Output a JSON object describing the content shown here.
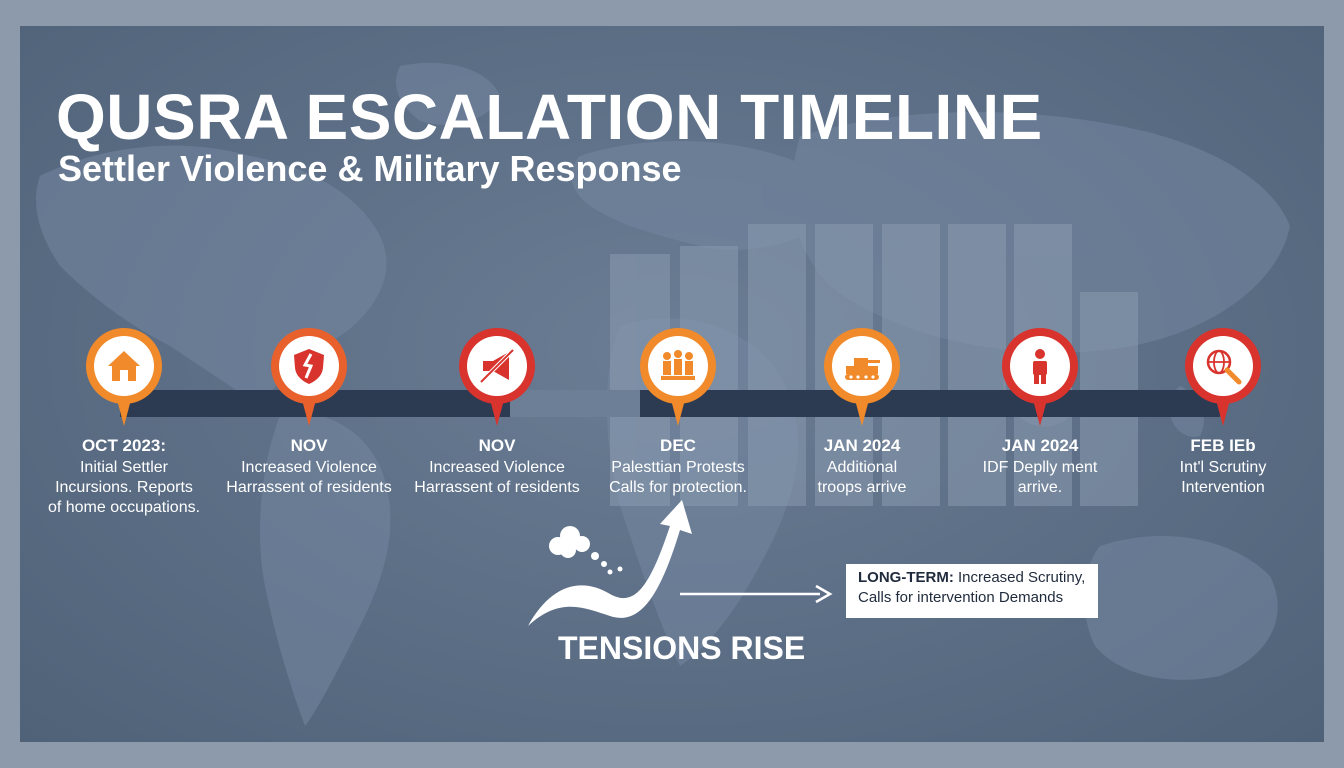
{
  "title": "QUSRA ESCALATION TIMELINE",
  "subtitle": "Settler Violence & Military Response",
  "colors": {
    "background": "#5c6e85",
    "timeline_bar": "#2c3a52",
    "marker_orange": "#f08a2a",
    "marker_red": "#d8332c",
    "text": "#ffffff"
  },
  "events": [
    {
      "date": "OCT 2023:",
      "line1": "Initial Settler",
      "line2": "Incursions. Reports",
      "line3": "of home occupations.",
      "icon": "house-icon",
      "color": "orange"
    },
    {
      "date": "NOV",
      "line1": "Increased Violence",
      "line2": "Harrassent of residents",
      "line3": "",
      "icon": "broken-shield-icon",
      "color": "orange-red"
    },
    {
      "date": "NOV",
      "line1": "Increased Violence",
      "line2": "Harrassent of residents",
      "line3": "",
      "icon": "banned-megaphone-icon",
      "color": "red"
    },
    {
      "date": "DEC",
      "line1": "Palesttian Protests",
      "line2": "Calls for protection.",
      "line3": "",
      "icon": "protesters-icon",
      "color": "orange"
    },
    {
      "date": "JAN 2024",
      "line1": "Additional",
      "line2": "troops arrive",
      "line3": "",
      "icon": "tank-icon",
      "color": "orange"
    },
    {
      "date": "JAN 2024",
      "line1": "IDF Deplly ment",
      "line2": "arrive.",
      "line3": "",
      "icon": "soldier-icon",
      "color": "red"
    },
    {
      "date": "FEB IEb",
      "line1": "Int'l Scrutiny",
      "line2": "Intervention",
      "line3": "",
      "icon": "globe-search-icon",
      "color": "red"
    }
  ],
  "callout": {
    "prefix": "LONG-TERM:",
    "line1": " Increased Scrutiny,",
    "line2": "Calls for intervention Demands"
  },
  "tensions_label": "TENSIONS RISE"
}
